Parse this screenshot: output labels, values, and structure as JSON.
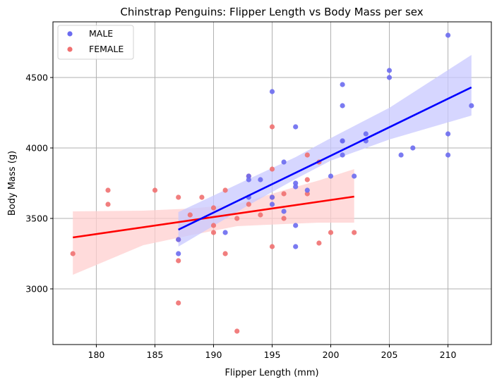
{
  "chart_data": {
    "type": "scatter",
    "title": "Chinstrap Penguins: Flipper Length vs Body Mass per sex",
    "xlabel": "Flipper Length (mm)",
    "ylabel": "Body Mass (g)",
    "xlim": [
      176.3,
      213.7
    ],
    "ylim": [
      2605,
      4895
    ],
    "xticks": [
      180,
      185,
      190,
      195,
      200,
      205,
      210
    ],
    "yticks": [
      3000,
      3500,
      4000,
      4500
    ],
    "grid": true,
    "legend_position": "top-left",
    "series": [
      {
        "name": "MALE",
        "color": "#6b6bf0",
        "line_color": "#0000ff",
        "band_color": "#c8c8ff",
        "points": [
          [
            187,
            3250
          ],
          [
            187,
            3350
          ],
          [
            191,
            3400
          ],
          [
            193,
            3650
          ],
          [
            193,
            3775
          ],
          [
            193,
            3800
          ],
          [
            194,
            3775
          ],
          [
            195,
            3600
          ],
          [
            195,
            3650
          ],
          [
            195,
            4400
          ],
          [
            196,
            3550
          ],
          [
            196,
            3900
          ],
          [
            197,
            3300
          ],
          [
            197,
            3450
          ],
          [
            197,
            3725
          ],
          [
            197,
            3750
          ],
          [
            197,
            4150
          ],
          [
            198,
            3700
          ],
          [
            200,
            3800
          ],
          [
            201,
            3950
          ],
          [
            201,
            4050
          ],
          [
            201,
            4050
          ],
          [
            201,
            4300
          ],
          [
            201,
            4450
          ],
          [
            202,
            3800
          ],
          [
            203,
            4050
          ],
          [
            203,
            4100
          ],
          [
            205,
            4500
          ],
          [
            205,
            4550
          ],
          [
            206,
            3950
          ],
          [
            207,
            4000
          ],
          [
            210,
            3950
          ],
          [
            210,
            4100
          ],
          [
            210,
            4800
          ],
          [
            212,
            4300
          ]
        ],
        "regression": {
          "x": [
            187,
            212
          ],
          "y": [
            3420,
            4430
          ]
        },
        "confidence_band": {
          "x": [
            187,
            193,
            197,
            200,
            205,
            212
          ],
          "upper": [
            3545,
            3780,
            3935,
            4070,
            4285,
            4660
          ],
          "lower": [
            3300,
            3595,
            3780,
            3910,
            4060,
            4230
          ]
        }
      },
      {
        "name": "FEMALE",
        "color": "#f07070",
        "line_color": "#ff0000",
        "band_color": "#ffcfcf",
        "points": [
          [
            178,
            3250
          ],
          [
            181,
            3600
          ],
          [
            181,
            3700
          ],
          [
            185,
            3700
          ],
          [
            187,
            2900
          ],
          [
            187,
            3200
          ],
          [
            187,
            3350
          ],
          [
            187,
            3650
          ],
          [
            188,
            3525
          ],
          [
            189,
            3650
          ],
          [
            190,
            3400
          ],
          [
            190,
            3450
          ],
          [
            190,
            3575
          ],
          [
            191,
            3250
          ],
          [
            191,
            3700
          ],
          [
            192,
            2700
          ],
          [
            192,
            3500
          ],
          [
            193,
            3600
          ],
          [
            193,
            3800
          ],
          [
            194,
            3525
          ],
          [
            195,
            3300
          ],
          [
            195,
            3650
          ],
          [
            195,
            3850
          ],
          [
            195,
            4150
          ],
          [
            196,
            3500
          ],
          [
            196,
            3675
          ],
          [
            198,
            3675
          ],
          [
            198,
            3775
          ],
          [
            198,
            3950
          ],
          [
            199,
            3325
          ],
          [
            199,
            3900
          ],
          [
            200,
            3400
          ],
          [
            202,
            3400
          ]
        ],
        "regression": {
          "x": [
            178,
            202
          ],
          "y": [
            3365,
            3655
          ]
        },
        "confidence_band": {
          "x": [
            178,
            184,
            188,
            192,
            196,
            199,
            202
          ],
          "upper": [
            3550,
            3555,
            3570,
            3600,
            3700,
            3770,
            3850
          ],
          "lower": [
            3100,
            3310,
            3380,
            3445,
            3460,
            3470,
            3470
          ]
        }
      }
    ]
  }
}
